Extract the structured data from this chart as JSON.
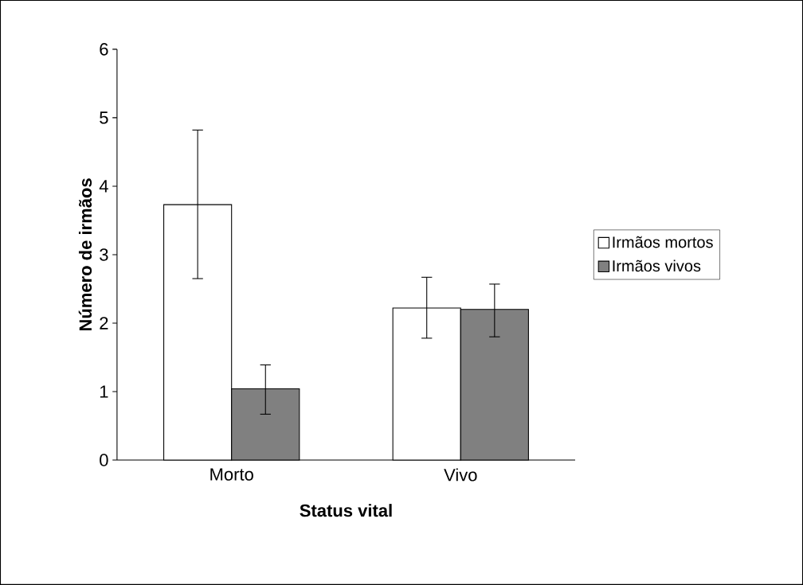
{
  "chart_data": {
    "type": "bar",
    "xlabel": "Status vital",
    "ylabel": "Número de irmãos",
    "categories": [
      "Morto",
      "Vivo"
    ],
    "series": [
      {
        "name": "Irmãos mortos",
        "color": "#ffffff",
        "values": [
          3.73,
          2.22
        ],
        "errors": [
          [
            2.65,
            4.82
          ],
          [
            1.78,
            2.67
          ]
        ]
      },
      {
        "name": "Irmãos vivos",
        "color": "#808080",
        "values": [
          1.04,
          2.2
        ],
        "errors": [
          [
            0.67,
            1.39
          ],
          [
            1.8,
            2.57
          ]
        ]
      }
    ],
    "ylim": [
      0,
      6
    ],
    "yticks": [
      0,
      1,
      2,
      3,
      4,
      5,
      6
    ],
    "legend": "right"
  }
}
